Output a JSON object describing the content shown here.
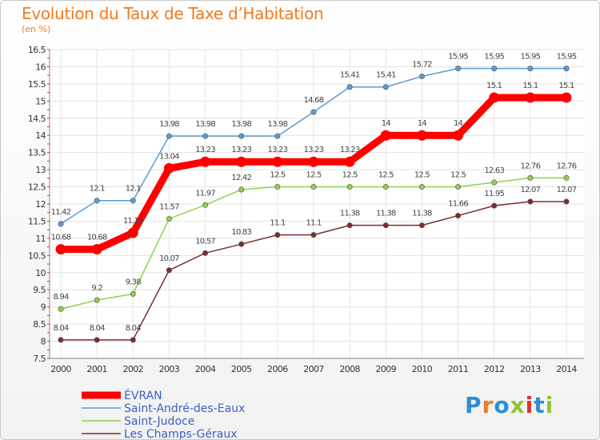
{
  "chart_data": {
    "type": "line",
    "title": "Evolution du Taux de Taxe d’Habitation",
    "subtitle": "(en %)",
    "x": [
      "2000",
      "2001",
      "2002",
      "2003",
      "2004",
      "2005",
      "2006",
      "2007",
      "2008",
      "2009",
      "2010",
      "2011",
      "2012",
      "2013",
      "2014"
    ],
    "ylim": [
      7.5,
      16.5
    ],
    "yticks": [
      "7.5",
      "8",
      "8.5",
      "9",
      "9.5",
      "10",
      "10.5",
      "11",
      "11.5",
      "12",
      "12.5",
      "13",
      "13.5",
      "14",
      "14.5",
      "15",
      "15.5",
      "16",
      "16.5"
    ],
    "grid": true,
    "legend_position": "bottom-left",
    "series": [
      {
        "name": "ÉVRAN",
        "color": "#ff0000",
        "values": [
          10.68,
          10.68,
          11.16,
          13.04,
          13.23,
          13.23,
          13.23,
          13.23,
          13.23,
          14,
          14,
          14,
          15.1,
          15.1,
          15.1
        ],
        "labels": [
          "10.68",
          "10.68",
          "11.16",
          "13.04",
          "13.23",
          "13.23",
          "13.23",
          "13.23",
          "13.23",
          "14",
          "14",
          "14",
          "15.1",
          "15.1",
          "15.1"
        ]
      },
      {
        "name": "Saint-André-des-Eaux",
        "color": "#5a9bd5",
        "values": [
          11.42,
          12.1,
          12.1,
          13.98,
          13.98,
          13.98,
          13.98,
          14.68,
          15.41,
          15.41,
          15.72,
          15.95,
          15.95,
          15.95,
          15.95
        ],
        "labels": [
          "11.42",
          "12.1",
          "12.1",
          "13.98",
          "13.98",
          "13.98",
          "13.98",
          "14.68",
          "15.41",
          "15.41",
          "15.72",
          "15.95",
          "15.95",
          "15.95",
          "15.95"
        ]
      },
      {
        "name": "Saint-Judoce",
        "color": "#8fd14f",
        "values": [
          8.94,
          9.2,
          9.38,
          11.57,
          11.97,
          12.42,
          12.5,
          12.5,
          12.5,
          12.5,
          12.5,
          12.5,
          12.63,
          12.76,
          12.76
        ],
        "labels": [
          "8.94",
          "9.2",
          "9.38",
          "11.57",
          "11.97",
          "12.42",
          "12.5",
          "12.5",
          "12.5",
          "12.5",
          "12.5",
          "12.5",
          "12.63",
          "12.76",
          "12.76"
        ]
      },
      {
        "name": "Les Champs-Géraux",
        "color": "#7a2e2e",
        "values": [
          8.04,
          8.04,
          8.04,
          10.07,
          10.57,
          10.83,
          11.1,
          11.1,
          11.38,
          11.38,
          11.38,
          11.66,
          11.95,
          12.07,
          12.07
        ],
        "labels": [
          "8.04",
          "8.04",
          "8.04",
          "10.07",
          "10.57",
          "10.83",
          "11.1",
          "11.1",
          "11.38",
          "11.38",
          "11.38",
          "11.66",
          "11.95",
          "12.07",
          "12.07"
        ]
      }
    ]
  },
  "brand": {
    "text": "Proxiti",
    "letter_colors": [
      "#2b8fd6",
      "#f07a1e",
      "#2b8fd6",
      "#8fc43a",
      "#e03030",
      "#2b8fd6",
      "#8fc43a"
    ]
  }
}
